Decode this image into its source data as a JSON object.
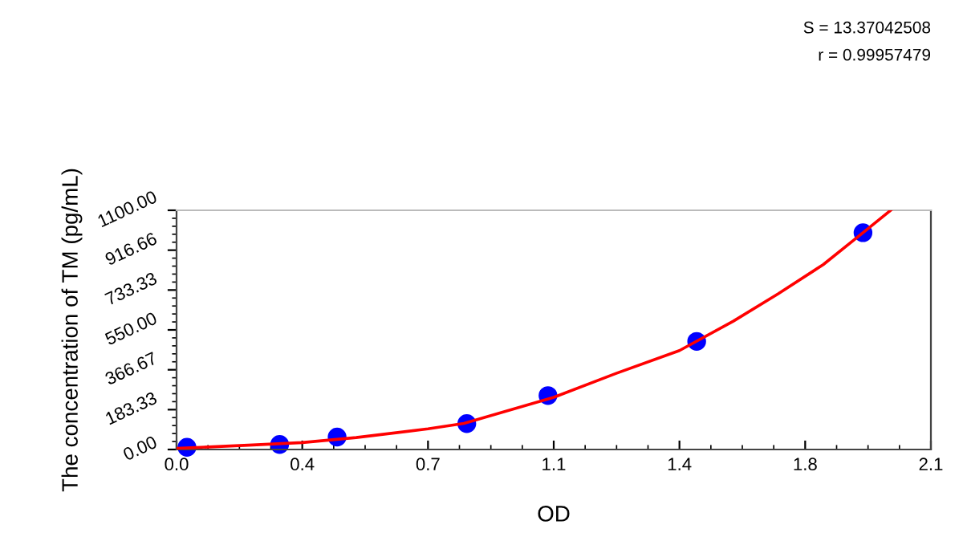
{
  "chart_data": {
    "type": "scatter",
    "xlabel": "OD",
    "ylabel": "The concentration of TM (pg/mL)",
    "annotations": [
      "S = 13.37042508",
      "r = 0.99957479"
    ],
    "series": [
      {
        "color": "#0000ff",
        "marker": "circle",
        "x": [
          0.029,
          0.287,
          0.447,
          0.808,
          1.034,
          1.448,
          1.911
        ],
        "values": [
          10,
          23,
          57,
          119,
          248,
          497,
          997
        ]
      },
      {
        "type": "line",
        "color": "#ff0000",
        "line_style": "solid",
        "x": [
          0,
          0.2,
          0.35,
          0.5,
          0.7,
          0.8,
          1.05,
          1.224,
          1.4,
          1.55,
          1.674,
          1.8,
          1.911,
          1.988
        ],
        "values": [
          5,
          20,
          32,
          55,
          95,
          120,
          240,
          350,
          455,
          590,
          715,
          850,
          997,
          1100
        ]
      }
    ],
    "xlim": [
      0,
      2.1
    ],
    "ylim": [
      0,
      1100
    ],
    "xticks": [
      {
        "value": 0,
        "label": "0.0"
      },
      {
        "value": 0.35,
        "label": "0.4"
      },
      0.7,
      {
        "value": 1.05,
        "label": "1.1"
      },
      1.4,
      {
        "value": 1.75,
        "label": "1.8"
      },
      2.1
    ],
    "yticks": [
      {
        "value": 0,
        "label": "0.00"
      },
      183.33,
      366.67,
      {
        "value": 550,
        "label": "550.00"
      },
      733.33,
      916.66,
      {
        "value": 1100,
        "label": "1100.00"
      }
    ],
    "grid": false,
    "legend": false
  }
}
